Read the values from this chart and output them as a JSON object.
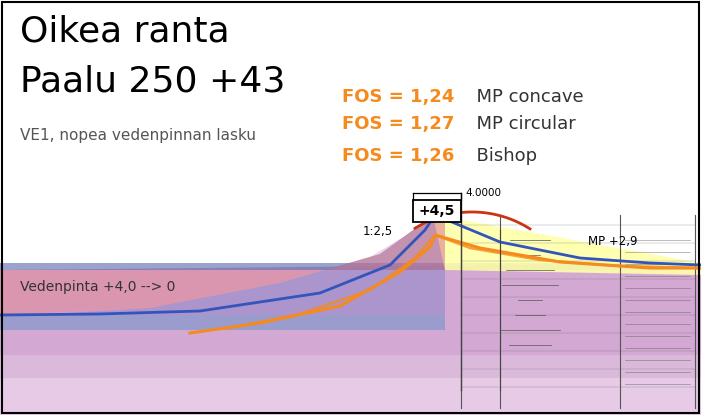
{
  "title_line1": "Oikea ranta",
  "title_line2": "Paalu 250 +43",
  "subtitle": "VE1, nopea vedenpinnan lasku",
  "water_label": "Vedenpinta +4,0 --> 0",
  "fos1_orange": "FOS = 1,24",
  "fos1_label": "  MP concave",
  "fos2_orange": "FOS = 1,27",
  "fos2_label": "  MP circular",
  "fos3_orange": "FOS = 1,26",
  "fos3_label": "  Bishop",
  "slope_label": "1:2,5",
  "crest_label": "+4,5",
  "elev_label": "4.0000",
  "mp_label": "MP +2,9",
  "bg_color": "#ffffff",
  "border_color": "#000000",
  "title_color": "#000000",
  "subtitle_color": "#555555",
  "fos_orange_color": "#f58a1e",
  "fos_label_color": "#333333",
  "water_text_color": "#333333",
  "layer_blue_color": "#8899cc",
  "layer_pink_main_color": "#cc99cc",
  "layer_pink_light_color": "#ddbbdd",
  "layer_pink_lighter_color": "#e8cce8",
  "layer_yellow_color": "#ffffaa",
  "layer_blue_stripe_color": "#5566aa",
  "slope_fill_red_color": "#ee6655",
  "line_blue_color": "#3355bb",
  "line_orange_color": "#f58a1e",
  "line_red_color": "#cc3311"
}
